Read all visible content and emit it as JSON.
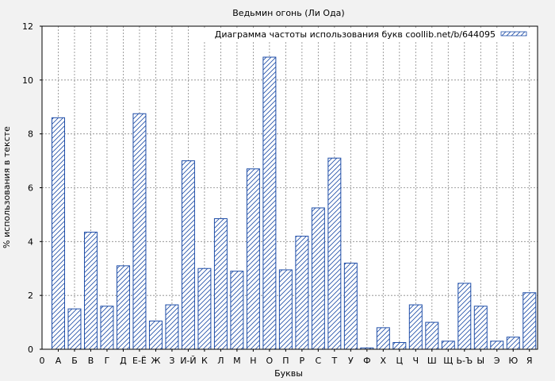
{
  "chart_data": {
    "type": "bar",
    "title": "Ведьмин огонь (Ли Ода)",
    "xlabel": "Буквы",
    "ylabel": "% использования в тексте",
    "legend": "Диаграмма частоты использования букв coollib.net/b/644095",
    "legend_position": "top-right",
    "grid": true,
    "ylim": [
      0,
      12
    ],
    "yticks": [
      0,
      2,
      4,
      6,
      8,
      10,
      12
    ],
    "x0_label": "0",
    "categories": [
      "А",
      "Б",
      "В",
      "Г",
      "Д",
      "Е-Ё",
      "Ж",
      "З",
      "И-Й",
      "К",
      "Л",
      "М",
      "Н",
      "О",
      "П",
      "Р",
      "С",
      "Т",
      "У",
      "Ф",
      "Х",
      "Ц",
      "Ч",
      "Ш",
      "Щ",
      "Ь-Ъ",
      "Ы",
      "Э",
      "Ю",
      "Я"
    ],
    "values": [
      8.6,
      1.5,
      4.35,
      1.6,
      3.1,
      8.75,
      1.05,
      1.65,
      7.0,
      3.0,
      4.85,
      2.9,
      6.7,
      10.85,
      2.95,
      4.2,
      5.25,
      7.1,
      3.2,
      0.05,
      0.8,
      0.25,
      1.65,
      1.0,
      0.3,
      2.45,
      1.6,
      0.3,
      0.45,
      2.1
    ],
    "colors": {
      "bar_stroke": "#1f4ea8",
      "hatch": "#1f4ea8",
      "bar_fill": "#ffffff",
      "plot_bg": "#ffffff",
      "page_bg": "#f2f2f2",
      "grid": "#888888"
    }
  }
}
